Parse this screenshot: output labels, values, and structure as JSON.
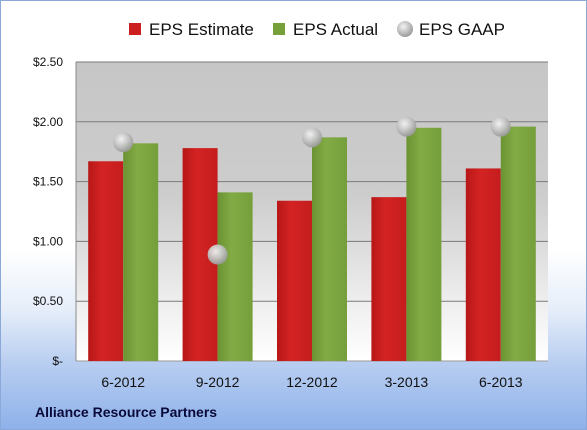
{
  "chart_data": {
    "type": "bar",
    "categories": [
      "6-2012",
      "9-2012",
      "12-2012",
      "3-2013",
      "6-2013"
    ],
    "series": [
      {
        "name": "EPS Estimate",
        "type": "bar",
        "color": "#cc1f1f",
        "values": [
          1.67,
          1.78,
          1.34,
          1.37,
          1.61
        ]
      },
      {
        "name": "EPS Actual",
        "type": "bar",
        "color": "#77a03a",
        "values": [
          1.82,
          1.41,
          1.87,
          1.95,
          1.96
        ]
      },
      {
        "name": "EPS GAAP",
        "type": "scatter",
        "color": "#b8b8b8",
        "values": [
          1.83,
          0.89,
          1.87,
          1.96,
          1.96
        ]
      }
    ],
    "yticks": [
      {
        "value": 0,
        "label": "$-"
      },
      {
        "value": 0.5,
        "label": "$0.50"
      },
      {
        "value": 1.0,
        "label": "$1.00"
      },
      {
        "value": 1.5,
        "label": "$1.50"
      },
      {
        "value": 2.0,
        "label": "$2.00"
      },
      {
        "value": 2.5,
        "label": "$2.50"
      }
    ],
    "ylim": [
      0,
      2.5
    ],
    "grid": true,
    "legend": "top"
  },
  "footer": {
    "company": "Alliance Resource Partners"
  }
}
